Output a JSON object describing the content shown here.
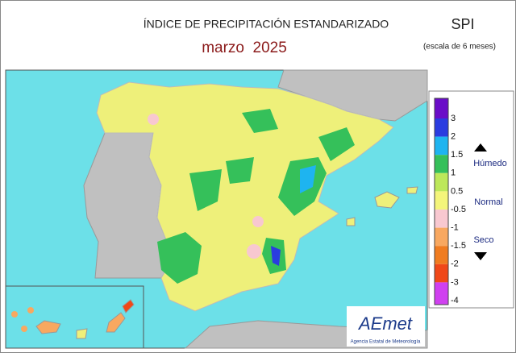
{
  "header": {
    "title": "ÍNDICE DE PRECIPITACIÓN ESTANDARIZADO",
    "subtitle": "marzo  2025",
    "index": "SPI",
    "scale": "(escala de 6 meses)"
  },
  "legend": {
    "labels": [
      "3",
      "2",
      "1.5",
      "1",
      "0.5",
      "-0.5",
      "-1",
      "-1.5",
      "-2",
      "-3",
      "-4"
    ],
    "colors": [
      "#6a0dc8",
      "#2a3ce0",
      "#1eb4f0",
      "#35c05a",
      "#bde85a",
      "#f4f57a",
      "#f8c8d0",
      "#f8a860",
      "#f07c20",
      "#f04818",
      "#d040f0",
      "#d040f0"
    ],
    "wet": "Húmedo",
    "normal": "Normal",
    "dry": "Seco"
  },
  "logo": {
    "name": "AEmet",
    "caption": "Agencia Estatal de Meteorología"
  }
}
